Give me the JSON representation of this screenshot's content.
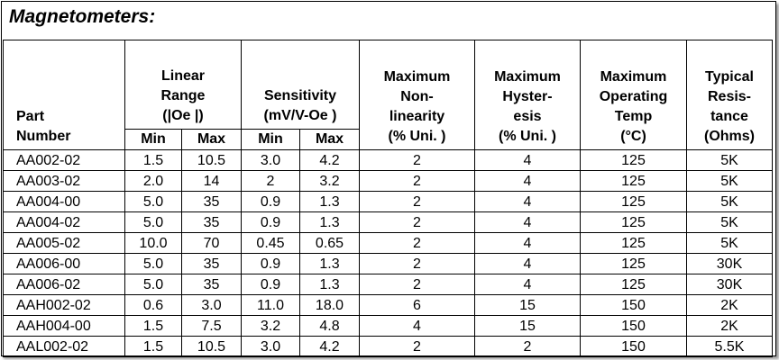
{
  "title": "Magnetometers:",
  "headers": {
    "part": [
      "Part",
      "Number"
    ],
    "linear_range": [
      "Linear",
      "Range",
      "(|Oe |)"
    ],
    "sensitivity": [
      "Sensitivity",
      "(mV/V-Oe )"
    ],
    "nonlinearity": [
      "Maximum",
      "Non-",
      "linearity",
      "(% Uni. )"
    ],
    "hysteresis": [
      "Maximum",
      "Hyster-",
      "esis",
      "(% Uni. )"
    ],
    "temp": [
      "Maximum",
      "Operating",
      "Temp",
      "(°C)"
    ],
    "resistance": [
      "Typical",
      "Resis-",
      "tance",
      "(Ohms)"
    ],
    "min": "Min",
    "max": "Max"
  },
  "rows": [
    {
      "part": "AA002-02",
      "lr_min": "1.5",
      "lr_max": "10.5",
      "s_min": "3.0",
      "s_max": "4.2",
      "nonlin": "2",
      "hyst": "4",
      "temp": "125",
      "res": "5K"
    },
    {
      "part": "AA003-02",
      "lr_min": "2.0",
      "lr_max": "14",
      "s_min": "2",
      "s_max": "3.2",
      "nonlin": "2",
      "hyst": "4",
      "temp": "125",
      "res": "5K"
    },
    {
      "part": "AA004-00",
      "lr_min": "5.0",
      "lr_max": "35",
      "s_min": "0.9",
      "s_max": "1.3",
      "nonlin": "2",
      "hyst": "4",
      "temp": "125",
      "res": "5K"
    },
    {
      "part": "AA004-02",
      "lr_min": "5.0",
      "lr_max": "35",
      "s_min": "0.9",
      "s_max": "1.3",
      "nonlin": "2",
      "hyst": "4",
      "temp": "125",
      "res": "5K"
    },
    {
      "part": "AA005-02",
      "lr_min": "10.0",
      "lr_max": "70",
      "s_min": "0.45",
      "s_max": "0.65",
      "nonlin": "2",
      "hyst": "4",
      "temp": "125",
      "res": "5K"
    },
    {
      "part": "AA006-00",
      "lr_min": "5.0",
      "lr_max": "35",
      "s_min": "0.9",
      "s_max": "1.3",
      "nonlin": "2",
      "hyst": "4",
      "temp": "125",
      "res": "30K"
    },
    {
      "part": "AA006-02",
      "lr_min": "5.0",
      "lr_max": "35",
      "s_min": "0.9",
      "s_max": "1.3",
      "nonlin": "2",
      "hyst": "4",
      "temp": "125",
      "res": "30K"
    },
    {
      "part": "AAH002-02",
      "lr_min": "0.6",
      "lr_max": "3.0",
      "s_min": "11.0",
      "s_max": "18.0",
      "nonlin": "6",
      "hyst": "15",
      "temp": "150",
      "res": "2K"
    },
    {
      "part": "AAH004-00",
      "lr_min": "1.5",
      "lr_max": "7.5",
      "s_min": "3.2",
      "s_max": "4.8",
      "nonlin": "4",
      "hyst": "15",
      "temp": "150",
      "res": "2K"
    },
    {
      "part": "AAL002-02",
      "lr_min": "1.5",
      "lr_max": "10.5",
      "s_min": "3.0",
      "s_max": "4.2",
      "nonlin": "2",
      "hyst": "2",
      "temp": "150",
      "res": "5.5K"
    }
  ]
}
